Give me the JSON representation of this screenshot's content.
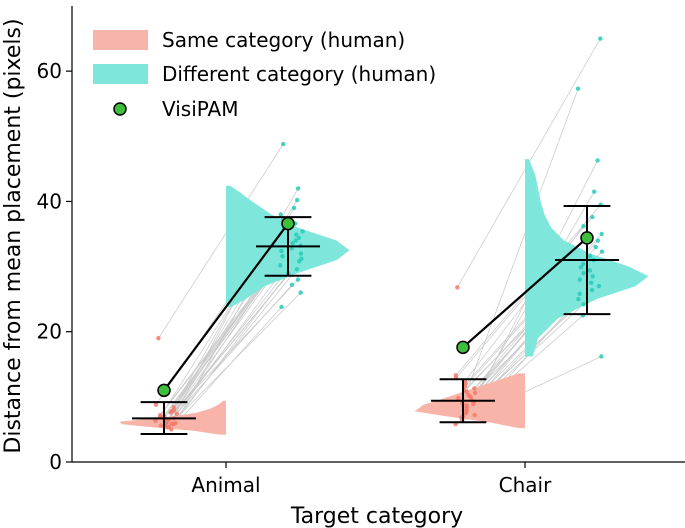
{
  "chart_data": {
    "type": "violin",
    "title": "",
    "xlabel": "Target category",
    "ylabel": "Distance from mean placement (pixels)",
    "categories": [
      "Animal",
      "Chair"
    ],
    "ylim": [
      0,
      70
    ],
    "yticks": [
      0,
      20,
      40,
      60
    ],
    "legend": {
      "position": "top-left",
      "entries": [
        {
          "label": "Same category (human)",
          "kind": "patch",
          "color": "#f8b4a8"
        },
        {
          "label": "Different category (human)",
          "kind": "patch",
          "color": "#7ee6da"
        },
        {
          "label": "VisiPAM",
          "kind": "marker",
          "color": "#3dbf3d"
        }
      ]
    },
    "colors": {
      "same_fill": "#f8b4a8",
      "same_points": "#f27a6a",
      "diff_fill": "#7ee6da",
      "diff_points": "#25cbb9",
      "visipam": "#3dbf3d",
      "pair_lines": "#c8c8c8"
    },
    "series": [
      {
        "name": "Same category (human)",
        "side": "left",
        "groups": [
          {
            "category": "Animal",
            "mean": 6.7,
            "err_low": 4.3,
            "err_high": 9.2,
            "violin_min": 4.2,
            "violin_max": 9.4,
            "density": [
              [
                4.2,
                0.05
              ],
              [
                4.8,
                0.25
              ],
              [
                5.3,
                0.55
              ],
              [
                5.8,
                0.8
              ],
              [
                6.2,
                0.82
              ],
              [
                6.6,
                0.6
              ],
              [
                7.0,
                0.4
              ],
              [
                7.6,
                0.22
              ],
              [
                8.2,
                0.12
              ],
              [
                8.8,
                0.06
              ],
              [
                9.4,
                0.02
              ]
            ],
            "points": [
              5.0,
              5.3,
              5.5,
              5.6,
              5.8,
              5.9,
              6.0,
              6.1,
              6.2,
              6.3,
              6.4,
              6.5,
              6.6,
              6.7,
              6.8,
              7.0,
              7.2,
              7.4,
              7.6,
              8.0,
              8.4,
              8.8,
              5.4,
              6.0,
              6.9,
              7.8,
              19.0
            ]
          },
          {
            "category": "Chair",
            "mean": 9.4,
            "err_low": 6.1,
            "err_high": 12.7,
            "violin_min": 5.2,
            "violin_max": 13.6,
            "density": [
              [
                5.2,
                0.05
              ],
              [
                6.0,
                0.25
              ],
              [
                7.0,
                0.6
              ],
              [
                7.8,
                0.85
              ],
              [
                8.8,
                0.78
              ],
              [
                9.6,
                0.65
              ],
              [
                10.6,
                0.5
              ],
              [
                11.6,
                0.35
              ],
              [
                12.6,
                0.2
              ],
              [
                13.6,
                0.05
              ]
            ],
            "points": [
              5.8,
              6.3,
              6.8,
              7.2,
              7.5,
              7.8,
              8.1,
              8.4,
              8.7,
              9.0,
              9.2,
              9.5,
              9.8,
              10.0,
              10.3,
              10.6,
              11.0,
              11.3,
              11.6,
              12.0,
              12.4,
              12.9,
              13.3,
              7.0,
              8.9,
              10.8,
              26.8
            ]
          }
        ]
      },
      {
        "name": "Different category (human)",
        "side": "right",
        "groups": [
          {
            "category": "Animal",
            "mean": 33.1,
            "err_low": 28.6,
            "err_high": 37.6,
            "violin_min": 23.8,
            "violin_max": 42.4,
            "density": [
              [
                23.8,
                0.04
              ],
              [
                25.0,
                0.15
              ],
              [
                27.0,
                0.3
              ],
              [
                29.0,
                0.55
              ],
              [
                31.0,
                0.85
              ],
              [
                32.5,
                0.95
              ],
              [
                34.0,
                0.85
              ],
              [
                36.0,
                0.55
              ],
              [
                38.0,
                0.35
              ],
              [
                40.0,
                0.2
              ],
              [
                41.5,
                0.1
              ],
              [
                42.4,
                0.03
              ]
            ],
            "points": [
              23.8,
              26.0,
              27.2,
              28.0,
              29.0,
              29.6,
              30.2,
              30.8,
              31.2,
              31.6,
              32.0,
              32.4,
              32.8,
              33.2,
              33.6,
              34.0,
              34.4,
              34.9,
              35.4,
              36.0,
              36.6,
              37.2,
              38.0,
              39.0,
              40.2,
              42.0,
              48.8
            ]
          },
          {
            "category": "Chair",
            "mean": 31.0,
            "err_low": 22.7,
            "err_high": 39.3,
            "violin_min": 16.2,
            "violin_max": 46.5,
            "density": [
              [
                16.2,
                0.06
              ],
              [
                19.0,
                0.1
              ],
              [
                22.0,
                0.25
              ],
              [
                25.0,
                0.55
              ],
              [
                27.0,
                0.85
              ],
              [
                28.5,
                0.95
              ],
              [
                30.0,
                0.8
              ],
              [
                32.0,
                0.5
              ],
              [
                34.0,
                0.3
              ],
              [
                36.0,
                0.2
              ],
              [
                38.0,
                0.15
              ],
              [
                40.0,
                0.12
              ],
              [
                42.0,
                0.1
              ],
              [
                44.0,
                0.08
              ],
              [
                46.5,
                0.03
              ]
            ],
            "points": [
              16.2,
              22.5,
              24.2,
              25.0,
              25.8,
              26.4,
              27.0,
              27.5,
              28.0,
              28.5,
              29.0,
              29.4,
              29.9,
              30.4,
              31.0,
              31.6,
              32.3,
              33.0,
              34.0,
              35.0,
              36.2,
              37.6,
              39.5,
              41.5,
              46.3,
              57.3,
              65.0
            ]
          }
        ]
      },
      {
        "name": "VisiPAM",
        "type": "line-markers",
        "points": [
          {
            "category": "Animal",
            "same": 11.0,
            "diff": 36.6
          },
          {
            "category": "Chair",
            "same": 17.6,
            "diff": 34.4
          }
        ]
      }
    ]
  }
}
